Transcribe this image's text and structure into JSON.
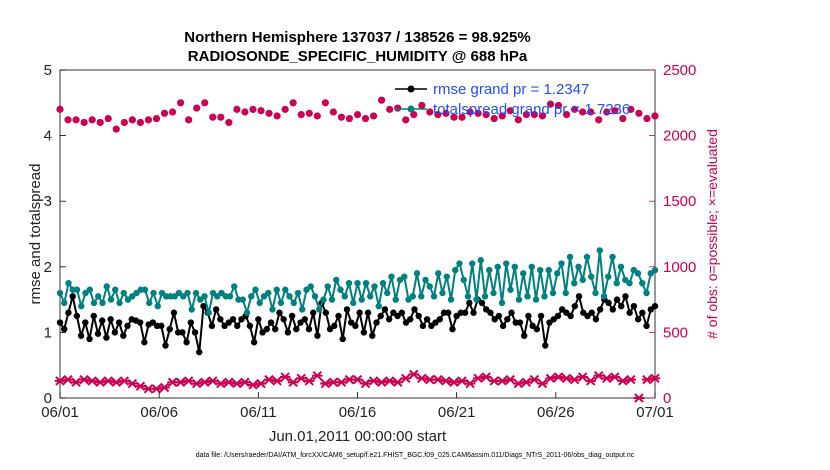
{
  "chart_data": {
    "type": "line",
    "title": "Northern Hemisphere 137037 / 138526 = 98.925%",
    "subtitle": "RADIOSONDE_SPECIFIC_HUMIDITY @ 688 hPa",
    "xlabel": "Jun.01,2011 00:00:00 start",
    "ylabel": "rmse and totalspread",
    "ylabel_right": "# of obs: o=possible; ×=evaluated",
    "x_ticks": [
      "06/01",
      "06/06",
      "06/11",
      "06/16",
      "06/21",
      "06/26",
      "07/01"
    ],
    "x_range": [
      0,
      30
    ],
    "y_ticks": [
      "0",
      "1",
      "2",
      "3",
      "4",
      "5"
    ],
    "ylim": [
      0,
      5
    ],
    "y2_ticks": [
      "0",
      "500",
      "1000",
      "1500",
      "2000",
      "2500"
    ],
    "y2lim": [
      0,
      2500
    ],
    "footnote": "data file: /Users/raeder/DAI/ATM_forcXX/CAM6_setup/f.e21.FHIST_BGC.f09_025.CAM6assim.011/Diags_NTrS_2011-06/obs_diag_output.nc",
    "series": [
      {
        "name": "rmse",
        "legend": "rmse grand pr = 1.2347",
        "color": "#000000",
        "axis": "left",
        "values": [
          1.15,
          1.05,
          1.3,
          1.55,
          1.25,
          0.95,
          1.15,
          0.9,
          1.25,
          0.98,
          1.18,
          0.92,
          1.2,
          1.0,
          1.15,
          0.95,
          1.1,
          1.2,
          1.18,
          1.15,
          0.85,
          1.12,
          1.15,
          1.1,
          1.1,
          0.8,
          1.05,
          1.3,
          1.0,
          1.0,
          0.85,
          1.15,
          1.0,
          0.7,
          1.4,
          1.3,
          1.1,
          1.35,
          1.2,
          1.1,
          1.15,
          1.2,
          1.1,
          1.2,
          1.25,
          1.1,
          0.85,
          1.2,
          1.0,
          1.05,
          1.15,
          1.05,
          1.3,
          1.2,
          1.0,
          1.25,
          1.05,
          1.15,
          1.2,
          1.05,
          1.3,
          0.95,
          1.45,
          1.3,
          1.05,
          1.1,
          1.25,
          0.9,
          1.35,
          1.15,
          1.1,
          1.3,
          1.0,
          1.3,
          0.95,
          1.15,
          1.25,
          1.35,
          1.2,
          1.3,
          1.25,
          1.3,
          1.15,
          1.2,
          1.35,
          1.25,
          1.1,
          1.2,
          1.1,
          1.15,
          1.2,
          1.3,
          1.3,
          1.05,
          1.25,
          1.3,
          1.3,
          1.45,
          1.3,
          1.5,
          1.45,
          1.35,
          1.3,
          1.2,
          1.25,
          1.1,
          1.2,
          1.3,
          1.15,
          1.15,
          0.95,
          1.25,
          1.1,
          1.05,
          1.25,
          0.8,
          1.15,
          1.2,
          1.25,
          1.35,
          1.3,
          1.25,
          1.4,
          1.55,
          1.3,
          1.25,
          1.3,
          1.2,
          1.35,
          1.5,
          1.45,
          1.35,
          1.5,
          1.4,
          1.55,
          1.3,
          1.4,
          1.2,
          1.3,
          1.1,
          1.35,
          1.4
        ]
      },
      {
        "name": "totalspread",
        "legend": "totalspread grand pr = 1.7236",
        "color": "#008080",
        "axis": "left",
        "values": [
          1.6,
          1.45,
          1.75,
          1.65,
          1.65,
          1.4,
          1.6,
          1.65,
          1.45,
          1.55,
          1.45,
          1.7,
          1.5,
          1.65,
          1.45,
          1.6,
          1.5,
          1.55,
          1.6,
          1.65,
          1.65,
          1.45,
          1.6,
          1.4,
          1.6,
          1.55,
          1.55,
          1.55,
          1.6,
          1.55,
          1.6,
          1.35,
          1.6,
          1.5,
          1.55,
          1.3,
          1.6,
          1.55,
          1.6,
          1.55,
          1.55,
          1.7,
          1.5,
          1.5,
          1.3,
          1.55,
          1.65,
          1.45,
          1.55,
          1.6,
          1.35,
          1.65,
          1.45,
          1.65,
          1.55,
          1.45,
          1.6,
          1.35,
          1.65,
          1.7,
          1.55,
          1.35,
          1.5,
          1.7,
          1.5,
          1.8,
          1.65,
          1.55,
          1.75,
          1.45,
          1.75,
          1.5,
          1.75,
          1.55,
          1.7,
          1.4,
          1.75,
          1.6,
          1.85,
          1.5,
          1.8,
          1.85,
          1.5,
          1.55,
          1.9,
          1.55,
          1.8,
          1.7,
          1.55,
          1.9,
          1.6,
          1.85,
          1.5,
          1.95,
          2.05,
          1.8,
          1.55,
          2.05,
          1.5,
          2.1,
          1.55,
          1.95,
          1.6,
          2.0,
          1.45,
          2.05,
          1.65,
          2.0,
          1.5,
          1.9,
          1.55,
          2.0,
          1.5,
          1.95,
          1.55,
          1.95,
          1.6,
          1.9,
          2.05,
          1.6,
          2.15,
          1.75,
          2.0,
          1.8,
          2.15,
          1.85,
          1.6,
          2.25,
          1.55,
          1.85,
          2.15,
          1.75,
          2.0,
          1.8,
          1.75,
          1.95,
          1.9,
          1.75,
          1.6,
          1.9,
          1.95
        ]
      },
      {
        "name": "obs possible",
        "color": "#cc0052",
        "axis": "right",
        "marker": "o",
        "values": [
          2200,
          2120,
          2120,
          2100,
          2120,
          2100,
          2130,
          2050,
          2100,
          2120,
          2100,
          2120,
          2130,
          2170,
          2180,
          2250,
          2120,
          2210,
          2250,
          2140,
          2140,
          2100,
          2200,
          2180,
          2200,
          2190,
          2170,
          2150,
          2200,
          2250,
          2160,
          2170,
          2150,
          2250,
          2180,
          2140,
          2130,
          2160,
          2130,
          2150,
          2270,
          2200,
          2210,
          2120,
          2160,
          2230,
          2180,
          2160,
          2170,
          2140,
          2140,
          2180,
          2170,
          2160,
          2130,
          2150,
          2190,
          2120,
          2160,
          2160,
          2150,
          2240,
          2230,
          2160,
          2200,
          2180,
          2180,
          2120,
          2180,
          2190,
          2130,
          2200,
          2170,
          2130,
          2150
        ]
      },
      {
        "name": "obs evaluated",
        "color": "#cc0052",
        "axis": "right",
        "marker": "x",
        "values": [
          130,
          140,
          120,
          140,
          130,
          120,
          130,
          120,
          130,
          110,
          90,
          70,
          70,
          80,
          120,
          120,
          130,
          110,
          120,
          130,
          110,
          120,
          110,
          120,
          100,
          110,
          140,
          130,
          160,
          120,
          150,
          130,
          170,
          110,
          120,
          120,
          140,
          140,
          110,
          130,
          120,
          130,
          120,
          150,
          180,
          150,
          140,
          140,
          130,
          120,
          130,
          110,
          150,
          160,
          130,
          130,
          140,
          110,
          120,
          140,
          110,
          150,
          160,
          150,
          140,
          160,
          130,
          170,
          150,
          160,
          130,
          140,
          0,
          140,
          150
        ]
      }
    ]
  }
}
